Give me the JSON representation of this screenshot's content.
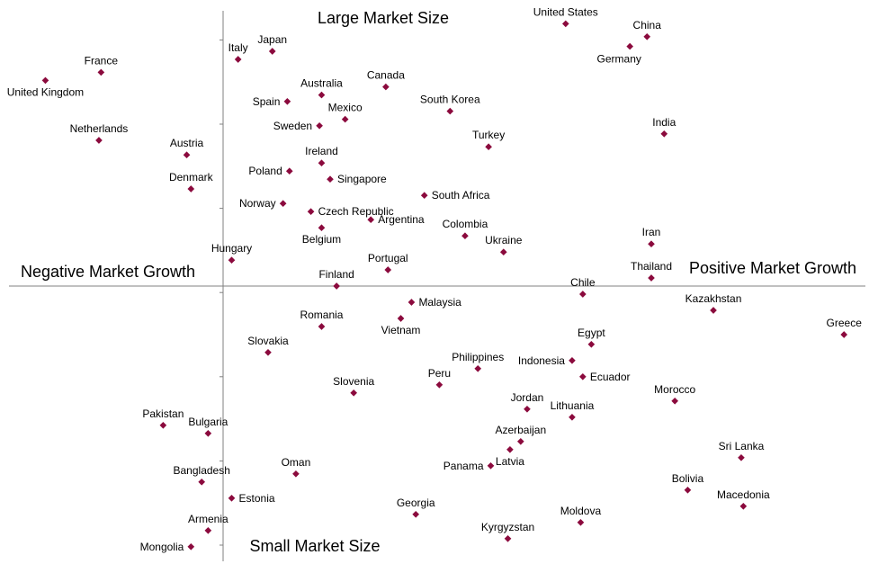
{
  "chart_data": {
    "type": "scatter",
    "title": "",
    "xlabel": "",
    "ylabel": "",
    "quadrant_labels": {
      "top": "Large Market Size",
      "bottom": "Small Market Size",
      "left": "Negative Market Growth",
      "right": "Positive Market Growth"
    },
    "xlim": [
      -10,
      30
    ],
    "ylim": [
      -17,
      17
    ],
    "axis_origin": [
      0,
      0
    ],
    "grid": false,
    "marker_color": "#8b0a3d",
    "axis_color": "#808080",
    "points": [
      {
        "name": "United States",
        "x": 16.0,
        "y": 16.2,
        "label_pos": "above"
      },
      {
        "name": "China",
        "x": 19.8,
        "y": 15.4,
        "label_pos": "above"
      },
      {
        "name": "Germany",
        "x": 19.0,
        "y": 14.8,
        "label_pos": "below-left"
      },
      {
        "name": "France",
        "x": -5.7,
        "y": 13.2,
        "label_pos": "above"
      },
      {
        "name": "United Kingdom",
        "x": -8.3,
        "y": 12.7,
        "label_pos": "below"
      },
      {
        "name": "Italy",
        "x": 0.7,
        "y": 14.0,
        "label_pos": "above"
      },
      {
        "name": "Japan",
        "x": 2.3,
        "y": 14.5,
        "label_pos": "above"
      },
      {
        "name": "Canada",
        "x": 7.6,
        "y": 12.3,
        "label_pos": "above"
      },
      {
        "name": "Australia",
        "x": 4.6,
        "y": 11.8,
        "label_pos": "above"
      },
      {
        "name": "Spain",
        "x": 3.0,
        "y": 11.4,
        "label_pos": "left"
      },
      {
        "name": "South Korea",
        "x": 10.6,
        "y": 10.8,
        "label_pos": "above"
      },
      {
        "name": "Mexico",
        "x": 5.7,
        "y": 10.3,
        "label_pos": "above"
      },
      {
        "name": "India",
        "x": 20.6,
        "y": 9.4,
        "label_pos": "above"
      },
      {
        "name": "Netherlands",
        "x": -5.8,
        "y": 9.0,
        "label_pos": "above"
      },
      {
        "name": "Sweden",
        "x": 4.5,
        "y": 9.9,
        "label_pos": "left"
      },
      {
        "name": "Turkey",
        "x": 12.4,
        "y": 8.6,
        "label_pos": "above"
      },
      {
        "name": "Austria",
        "x": -1.7,
        "y": 8.1,
        "label_pos": "above"
      },
      {
        "name": "Ireland",
        "x": 4.6,
        "y": 7.6,
        "label_pos": "above"
      },
      {
        "name": "Poland",
        "x": 3.1,
        "y": 7.1,
        "label_pos": "left"
      },
      {
        "name": "Singapore",
        "x": 5.0,
        "y": 6.6,
        "label_pos": "right"
      },
      {
        "name": "Denmark",
        "x": -1.5,
        "y": 6.0,
        "label_pos": "above"
      },
      {
        "name": "South Africa",
        "x": 9.4,
        "y": 5.6,
        "label_pos": "right"
      },
      {
        "name": "Norway",
        "x": 2.8,
        "y": 5.1,
        "label_pos": "left"
      },
      {
        "name": "Czech Republic",
        "x": 4.1,
        "y": 4.6,
        "label_pos": "right"
      },
      {
        "name": "Argentina",
        "x": 6.9,
        "y": 4.1,
        "label_pos": "right"
      },
      {
        "name": "Belgium",
        "x": 4.6,
        "y": 3.6,
        "label_pos": "below"
      },
      {
        "name": "Colombia",
        "x": 11.3,
        "y": 3.1,
        "label_pos": "above"
      },
      {
        "name": "Iran",
        "x": 20.0,
        "y": 2.6,
        "label_pos": "above"
      },
      {
        "name": "Ukraine",
        "x": 13.1,
        "y": 2.1,
        "label_pos": "above"
      },
      {
        "name": "Hungary",
        "x": 0.4,
        "y": 1.6,
        "label_pos": "above"
      },
      {
        "name": "Portugal",
        "x": 7.7,
        "y": 1.0,
        "label_pos": "above"
      },
      {
        "name": "Thailand",
        "x": 20.0,
        "y": 0.5,
        "label_pos": "above"
      },
      {
        "name": "Finland",
        "x": 5.3,
        "y": 0.0,
        "label_pos": "above"
      },
      {
        "name": "Chile",
        "x": 16.8,
        "y": -0.5,
        "label_pos": "above"
      },
      {
        "name": "Malaysia",
        "x": 8.8,
        "y": -1.0,
        "label_pos": "right"
      },
      {
        "name": "Kazakhstan",
        "x": 22.9,
        "y": -1.5,
        "label_pos": "above"
      },
      {
        "name": "Vietnam",
        "x": 8.3,
        "y": -2.0,
        "label_pos": "below"
      },
      {
        "name": "Romania",
        "x": 4.6,
        "y": -2.5,
        "label_pos": "above"
      },
      {
        "name": "Greece",
        "x": 29.0,
        "y": -3.0,
        "label_pos": "above"
      },
      {
        "name": "Egypt",
        "x": 17.2,
        "y": -3.6,
        "label_pos": "above"
      },
      {
        "name": "Slovakia",
        "x": 2.1,
        "y": -4.1,
        "label_pos": "above"
      },
      {
        "name": "Indonesia",
        "x": 16.3,
        "y": -4.6,
        "label_pos": "left"
      },
      {
        "name": "Philippines",
        "x": 11.9,
        "y": -5.1,
        "label_pos": "above"
      },
      {
        "name": "Ecuador",
        "x": 16.8,
        "y": -5.6,
        "label_pos": "right"
      },
      {
        "name": "Peru",
        "x": 10.1,
        "y": -6.1,
        "label_pos": "above"
      },
      {
        "name": "Slovenia",
        "x": 6.1,
        "y": -6.6,
        "label_pos": "above"
      },
      {
        "name": "Morocco",
        "x": 21.1,
        "y": -7.1,
        "label_pos": "above"
      },
      {
        "name": "Jordan",
        "x": 14.2,
        "y": -7.6,
        "label_pos": "above"
      },
      {
        "name": "Lithuania",
        "x": 16.3,
        "y": -8.1,
        "label_pos": "above"
      },
      {
        "name": "Pakistan",
        "x": -2.8,
        "y": -8.6,
        "label_pos": "above"
      },
      {
        "name": "Bulgaria",
        "x": -0.7,
        "y": -9.1,
        "label_pos": "above"
      },
      {
        "name": "Azerbaijan",
        "x": 13.9,
        "y": -9.6,
        "label_pos": "above"
      },
      {
        "name": "Latvia",
        "x": 13.4,
        "y": -10.1,
        "label_pos": "below"
      },
      {
        "name": "Sri Lanka",
        "x": 24.2,
        "y": -10.6,
        "label_pos": "above"
      },
      {
        "name": "Panama",
        "x": 12.5,
        "y": -11.1,
        "label_pos": "left"
      },
      {
        "name": "Oman",
        "x": 3.4,
        "y": -11.6,
        "label_pos": "above"
      },
      {
        "name": "Bangladesh",
        "x": -1.0,
        "y": -12.1,
        "label_pos": "above"
      },
      {
        "name": "Bolivia",
        "x": 21.7,
        "y": -12.6,
        "label_pos": "above"
      },
      {
        "name": "Estonia",
        "x": 0.4,
        "y": -13.1,
        "label_pos": "right"
      },
      {
        "name": "Macedonia",
        "x": 24.3,
        "y": -13.6,
        "label_pos": "above"
      },
      {
        "name": "Georgia",
        "x": 9.0,
        "y": -14.1,
        "label_pos": "above"
      },
      {
        "name": "Moldova",
        "x": 16.7,
        "y": -14.6,
        "label_pos": "above"
      },
      {
        "name": "Armenia",
        "x": -0.7,
        "y": -15.1,
        "label_pos": "above"
      },
      {
        "name": "Kyrgyzstan",
        "x": 13.3,
        "y": -15.6,
        "label_pos": "above"
      },
      {
        "name": "Mongolia",
        "x": -1.5,
        "y": -16.1,
        "label_pos": "left"
      }
    ]
  }
}
